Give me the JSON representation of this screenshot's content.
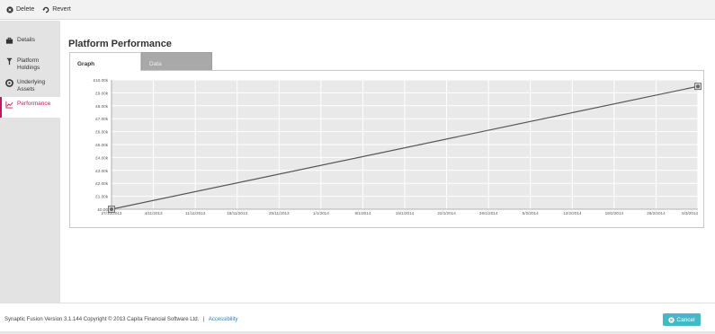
{
  "toolbar": {
    "delete_label": "Delete",
    "revert_label": "Revert"
  },
  "sidebar": {
    "items": [
      {
        "label": "Details",
        "icon": "briefcase-icon"
      },
      {
        "label": "Platform Holdings",
        "icon": "pin-icon"
      },
      {
        "label": "Underlying Assets",
        "icon": "circle-icon"
      },
      {
        "label": "Performance",
        "icon": "line-chart-icon"
      }
    ],
    "active_index": 3
  },
  "main": {
    "title": "Platform Performance",
    "tabs": [
      {
        "label": "Graph",
        "active": true
      },
      {
        "label": "Data",
        "active": false
      }
    ]
  },
  "chart_data": {
    "type": "line",
    "x": [
      "27/10/2013",
      "4/11/2013",
      "11/11/2013",
      "18/11/2013",
      "25/11/2013",
      "1/1/2014",
      "8/1/2014",
      "15/1/2014",
      "22/1/2014",
      "26/1/2014",
      "5/2/2014",
      "12/2/2014",
      "19/2/2014",
      "26/2/2014",
      "6/3/2014"
    ],
    "series": [
      {
        "values": [
          0,
          null,
          null,
          null,
          null,
          null,
          null,
          null,
          null,
          null,
          null,
          null,
          null,
          null,
          9.5
        ]
      }
    ],
    "y_ticks": [
      "£0.00",
      "£1.00k",
      "£2.00k",
      "£3.00k",
      "£4.00k",
      "£5.00k",
      "£6.00k",
      "£7.00k",
      "£8.00k",
      "£9.00k",
      "£10.00k"
    ],
    "ylim": [
      0,
      10
    ],
    "grid": true,
    "colors": {
      "line": "#555555",
      "plot_bg": "#e9e9e9",
      "grid": "#ffffff"
    }
  },
  "footer": {
    "version_text": "Synaptic Fusion Version 3.1.144",
    "copyright_text": "Copyright © 2013 Capita Financial Software Ltd.",
    "separator": "|",
    "accessibility_label": "Accessibility",
    "cancel_label": "Cancel"
  },
  "colors": {
    "accent": "#c2185b",
    "cancel_button": "#45b8c8",
    "link": "#2a7fb8"
  }
}
